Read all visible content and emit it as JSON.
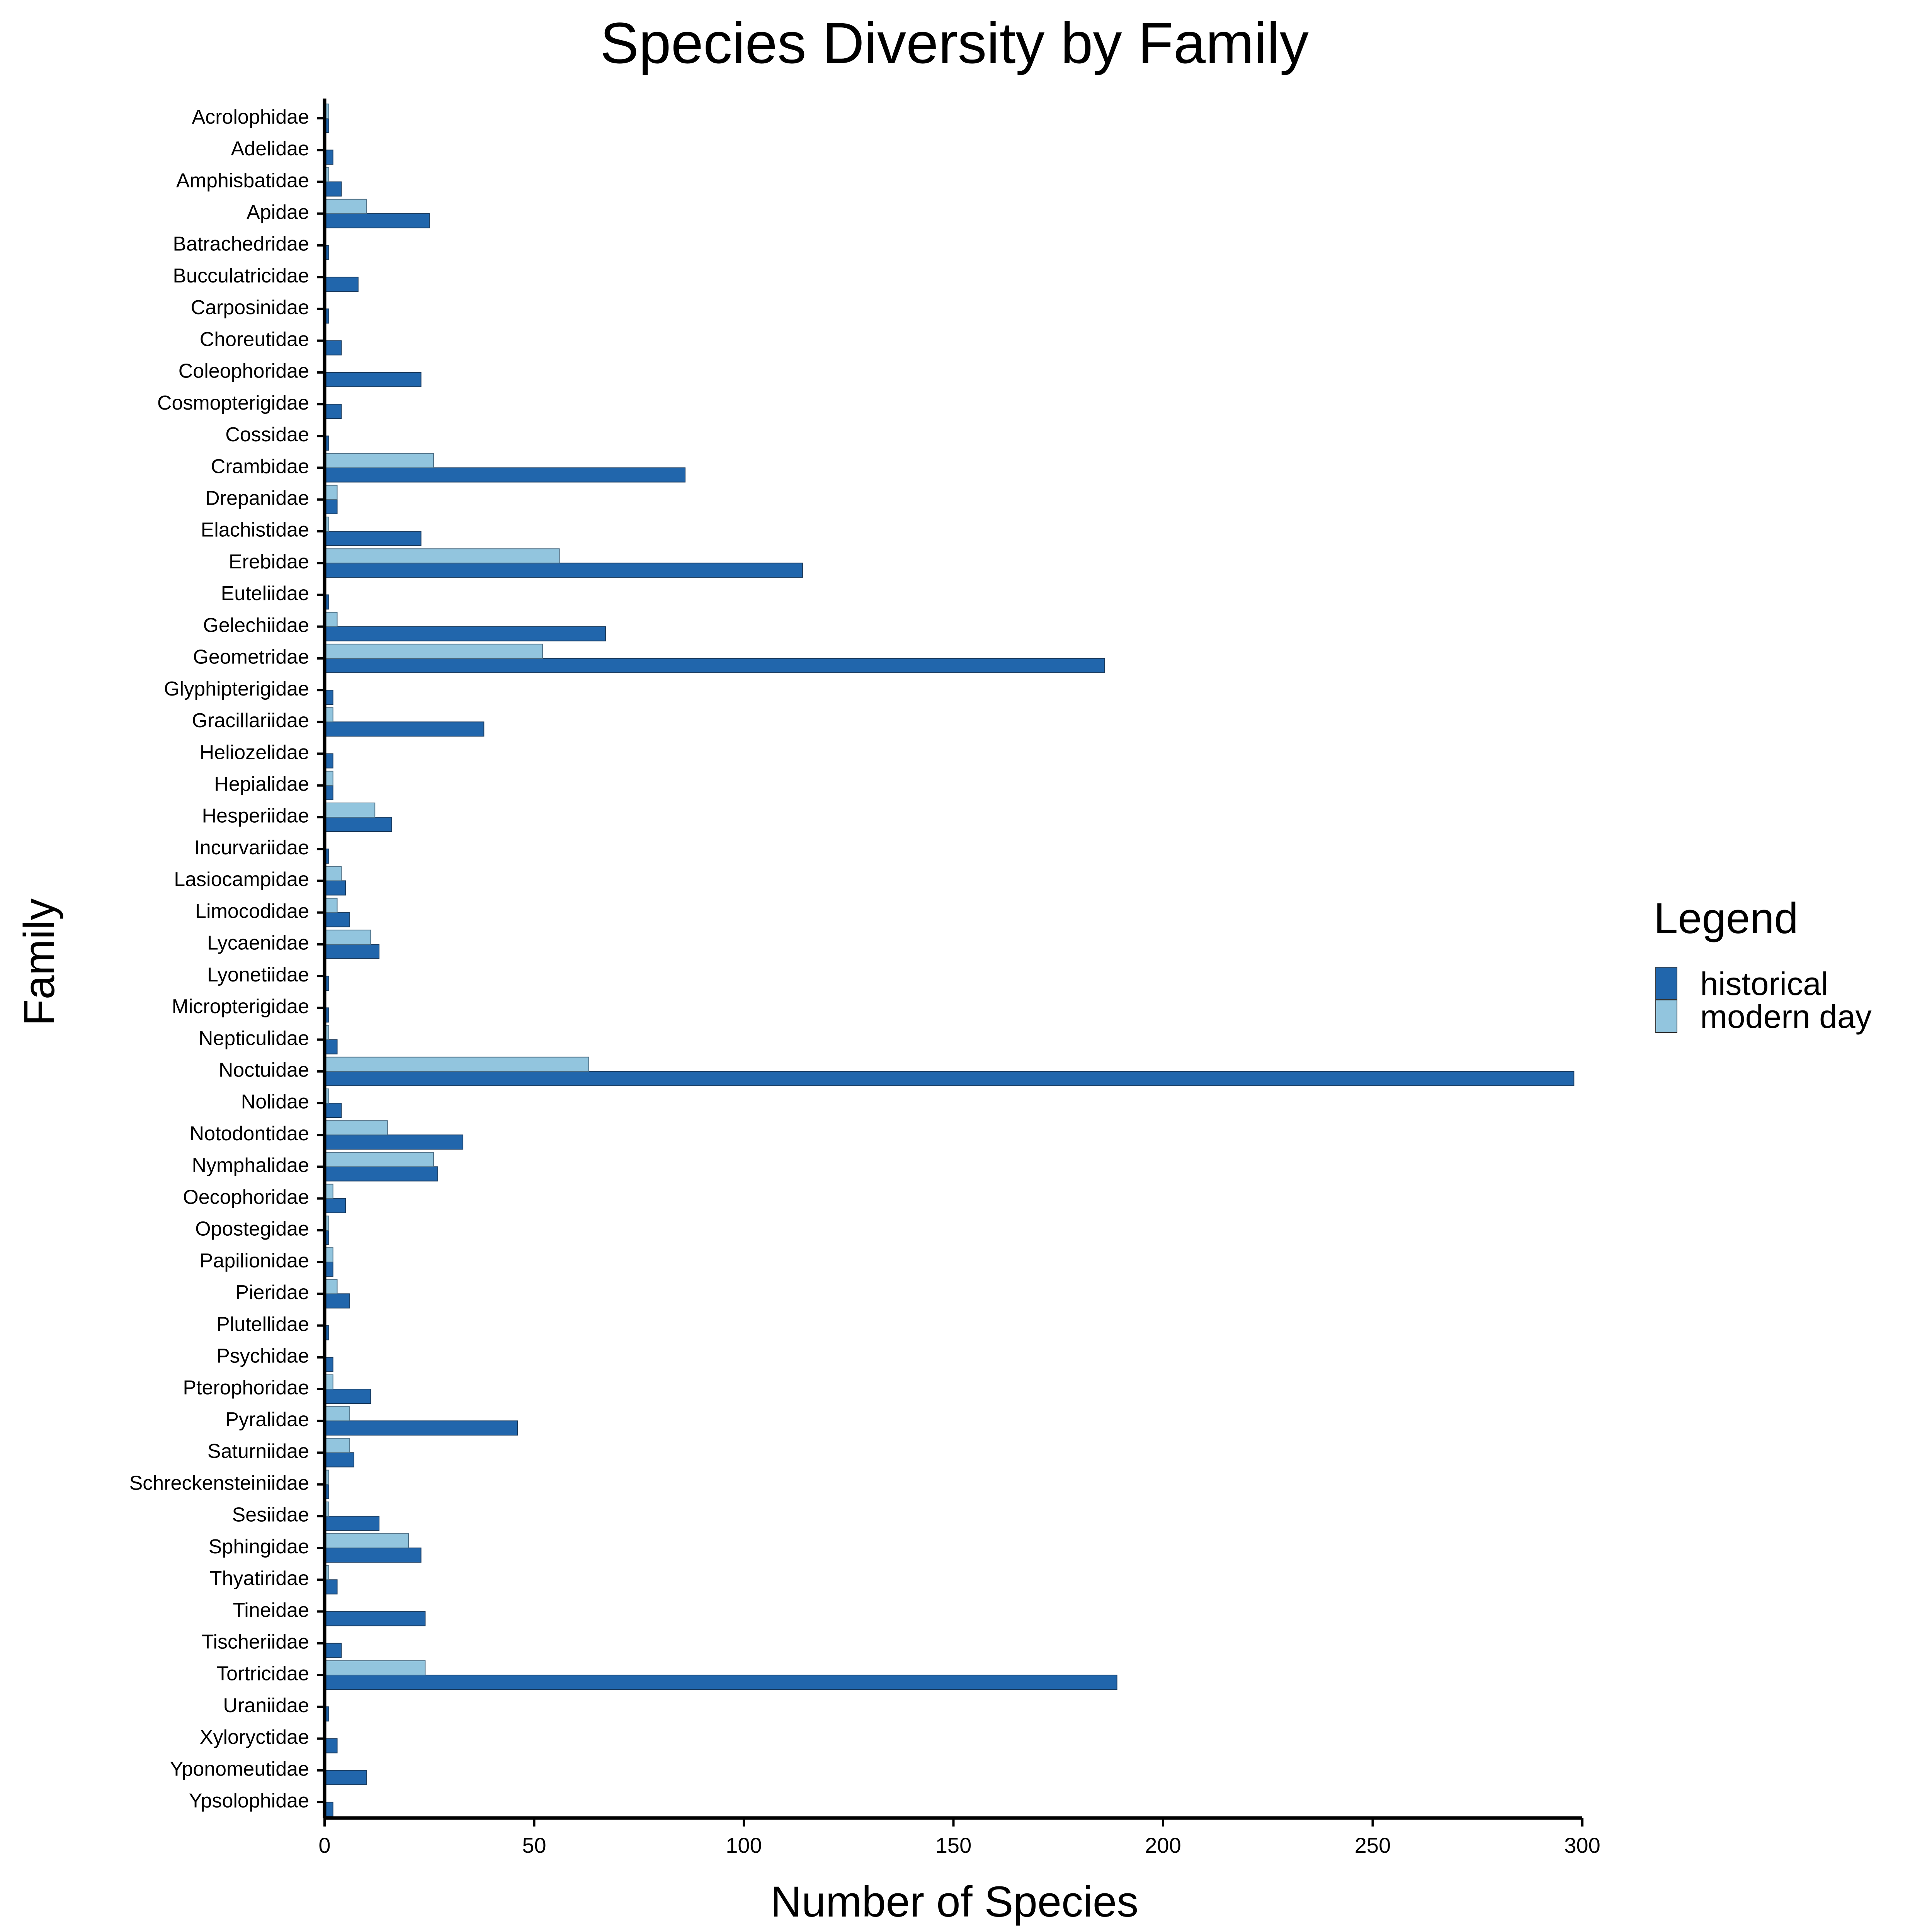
{
  "chart_data": {
    "type": "bar",
    "orientation": "horizontal",
    "title": "Species Diversity by Family",
    "xlabel": "Number of Species",
    "ylabel": "Family",
    "xlim": [
      0,
      300
    ],
    "xticks": [
      "0",
      "50",
      "100",
      "150",
      "200",
      "250",
      "300"
    ],
    "grid": false,
    "legend_placement": "right",
    "legend_title": "Legend",
    "categories": [
      "Acrolophidae",
      "Adelidae",
      "Amphisbatidae",
      "Apidae",
      "Batrachedridae",
      "Bucculatricidae",
      "Carposinidae",
      "Choreutidae",
      "Coleophoridae",
      "Cosmopterigidae",
      "Cossidae",
      "Crambidae",
      "Drepanidae",
      "Elachistidae",
      "Erebidae",
      "Euteliidae",
      "Gelechiidae",
      "Geometridae",
      "Glyphipterigidae",
      "Gracillariidae",
      "Heliozelidae",
      "Hepialidae",
      "Hesperiidae",
      "Incurvariidae",
      "Lasiocampidae",
      "Limocodidae",
      "Lycaenidae",
      "Lyonetiidae",
      "Micropterigidae",
      "Nepticulidae",
      "Noctuidae",
      "Nolidae",
      "Notodontidae",
      "Nymphalidae",
      "Oecophoridae",
      "Opostegidae",
      "Papilionidae",
      "Pieridae",
      "Plutellidae",
      "Psychidae",
      "Pterophoridae",
      "Pyralidae",
      "Saturniidae",
      "Schreckensteiniidae",
      "Sesiidae",
      "Sphingidae",
      "Thyatiridae",
      "Tineidae",
      "Tischeriidae",
      "Tortricidae",
      "Uraniidae",
      "Xyloryctidae",
      "Yponomeutidae",
      "Ypsolophidae"
    ],
    "series": [
      {
        "name": "historical",
        "color": "#2166ac",
        "values": [
          1,
          2,
          4,
          25,
          1,
          8,
          1,
          4,
          23,
          4,
          1,
          86,
          3,
          23,
          114,
          1,
          67,
          186,
          2,
          38,
          2,
          2,
          16,
          1,
          5,
          6,
          13,
          1,
          1,
          3,
          298,
          4,
          33,
          27,
          5,
          1,
          2,
          6,
          1,
          2,
          11,
          46,
          7,
          1,
          13,
          23,
          3,
          24,
          4,
          189,
          1,
          3,
          10,
          2
        ]
      },
      {
        "name": "modern day",
        "color": "#92c5de",
        "values": [
          1,
          0,
          1,
          10,
          0,
          0,
          0,
          0,
          0,
          0,
          0,
          26,
          3,
          1,
          56,
          0,
          3,
          52,
          0,
          2,
          0,
          2,
          12,
          0,
          4,
          3,
          11,
          0,
          0,
          1,
          63,
          1,
          15,
          26,
          2,
          1,
          2,
          3,
          0,
          0,
          2,
          6,
          6,
          1,
          1,
          20,
          1,
          0,
          0,
          24,
          0,
          0,
          0,
          0
        ]
      }
    ]
  }
}
